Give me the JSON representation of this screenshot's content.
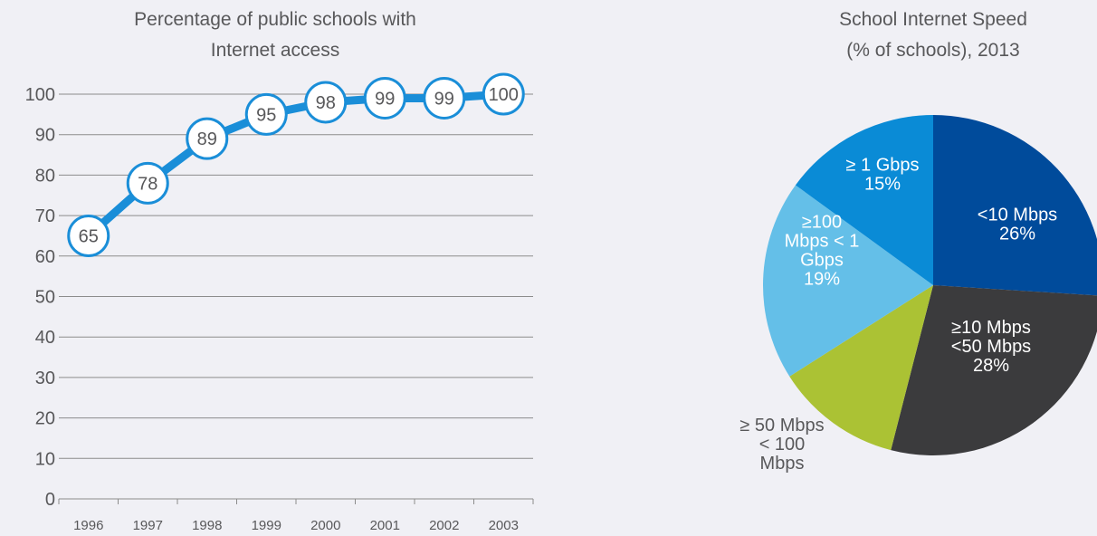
{
  "colors": {
    "background": "#f0f0f5",
    "text": "#58585a",
    "line": "#1a8ed8",
    "grid": "#8c8c8c",
    "marker_fill": "#ffffff"
  },
  "chart_data": [
    {
      "type": "line",
      "title_lines": [
        "Percentage of public schools with",
        "Internet access"
      ],
      "categories": [
        "1996",
        "1997",
        "1998",
        "1999",
        "2000",
        "2001",
        "2002",
        "2003"
      ],
      "series": [
        {
          "values": [
            65,
            78,
            89,
            95,
            98,
            99,
            99,
            100
          ]
        }
      ],
      "data_labels": [
        "65",
        "78",
        "89",
        "95",
        "98",
        "99",
        "99",
        "100"
      ],
      "ylim": [
        0,
        100
      ],
      "yticks": [
        0,
        10,
        20,
        30,
        40,
        50,
        60,
        70,
        80,
        90,
        100
      ],
      "ytick_labels": [
        "0",
        "10",
        "20",
        "30",
        "40",
        "50",
        "60",
        "70",
        "80",
        "90",
        "100"
      ],
      "grid": true,
      "legend": "none"
    },
    {
      "type": "pie",
      "title_lines": [
        "School Internet Speed",
        "(% of schools), 2013"
      ],
      "slices": [
        {
          "label_lines": [
            "<10 Mbps",
            "26%"
          ],
          "value": 26,
          "color": "#004b9b",
          "label_color": "#ffffff"
        },
        {
          "label_lines": [
            "≥10 Mbps",
            "<50 Mbps",
            "28%"
          ],
          "value": 28,
          "color": "#3b3b3d",
          "label_color": "#ffffff"
        },
        {
          "label_lines": [
            "≥ 50 Mbps",
            "< 100",
            "Mbps"
          ],
          "value": 12,
          "color": "#abc234",
          "label_color": "#58585a"
        },
        {
          "label_lines": [
            "≥100",
            "Mbps < 1",
            "Gbps",
            "19%"
          ],
          "value": 19,
          "color": "#64bfe8",
          "label_color": "#ffffff"
        },
        {
          "label_lines": [
            "≥ 1 Gbps",
            "15%"
          ],
          "value": 15,
          "color": "#0a8bd6",
          "label_color": "#ffffff"
        }
      ],
      "start": "12 o'clock",
      "direction": "clockwise",
      "legend": "none"
    }
  ]
}
